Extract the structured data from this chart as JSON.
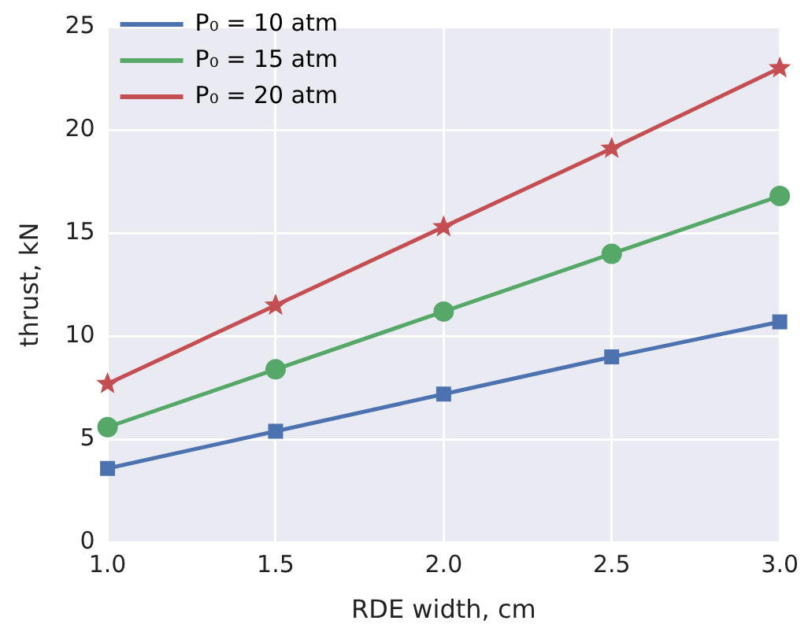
{
  "chart_data": {
    "type": "line",
    "xlabel": "RDE width, cm",
    "ylabel": "thrust, kN",
    "x": [
      1.0,
      1.5,
      2.0,
      2.5,
      3.0
    ],
    "series": [
      {
        "name": "P₀ = 10 atm",
        "color": "#4c72b0",
        "marker": "square",
        "values": [
          3.6,
          5.4,
          7.2,
          9.0,
          10.7
        ]
      },
      {
        "name": "P₀ = 15 atm",
        "color": "#55a868",
        "marker": "circle",
        "values": [
          5.6,
          8.4,
          11.2,
          14.0,
          16.8
        ]
      },
      {
        "name": "P₀ = 20 atm",
        "color": "#c44e52",
        "marker": "star",
        "values": [
          7.7,
          11.5,
          15.3,
          19.1,
          23.0
        ]
      }
    ],
    "xlim": [
      1.0,
      3.0
    ],
    "xticks": [
      {
        "value": 1.0,
        "label": "1.0"
      },
      {
        "value": 1.5,
        "label": "1.5"
      },
      {
        "value": 2.0,
        "label": "2.0"
      },
      {
        "value": 2.5,
        "label": "2.5"
      },
      {
        "value": 3.0,
        "label": "3.0"
      }
    ],
    "ylim": [
      0,
      25
    ],
    "yticks": [
      0,
      5,
      10,
      15,
      20,
      25
    ],
    "grid": true,
    "legend": "top left",
    "line_style": "solid"
  }
}
